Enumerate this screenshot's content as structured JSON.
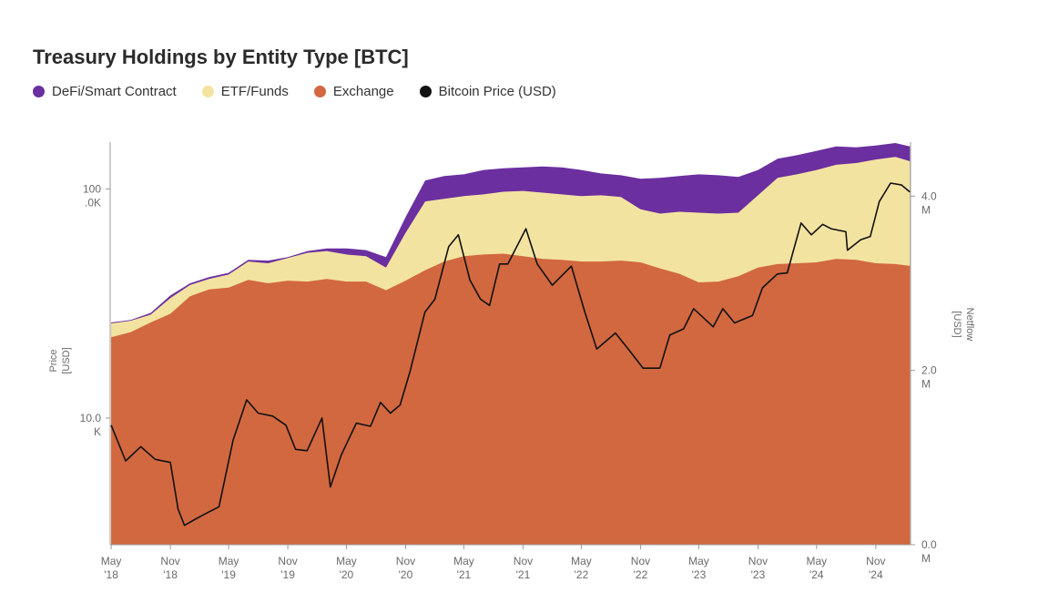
{
  "colors": {
    "defi": "#6b2fa0",
    "etf": "#f3e3a0",
    "exchange": "#d2683f",
    "price": "#111111"
  },
  "chart_data": {
    "type": "area",
    "title": "Treasury Holdings by Entity Type [BTC]",
    "legend": [
      {
        "key": "defi",
        "label": "DeFi/Smart Contract"
      },
      {
        "key": "etf",
        "label": "ETF/Funds"
      },
      {
        "key": "exchange",
        "label": "Exchange"
      },
      {
        "key": "price",
        "label": "Bitcoin Price (USD)"
      }
    ],
    "legend_position": "top-left",
    "grid": false,
    "x_ticks": [
      {
        "month": "May",
        "year": "'18"
      },
      {
        "month": "Nov",
        "year": "'18"
      },
      {
        "month": "May",
        "year": "'19"
      },
      {
        "month": "Nov",
        "year": "'19"
      },
      {
        "month": "May",
        "year": "'20"
      },
      {
        "month": "Nov",
        "year": "'20"
      },
      {
        "month": "May",
        "year": "'21"
      },
      {
        "month": "Nov",
        "year": "'21"
      },
      {
        "month": "May",
        "year": "'22"
      },
      {
        "month": "Nov",
        "year": "'22"
      },
      {
        "month": "May",
        "year": "'23"
      },
      {
        "month": "Nov",
        "year": "'23"
      },
      {
        "month": "May",
        "year": "'24"
      },
      {
        "month": "Nov",
        "year": "'24"
      }
    ],
    "y_left": {
      "label_line1": "Price",
      "label_line2": "[USD]",
      "scale": "log",
      "range": [
        2800,
        160000
      ],
      "ticks": [
        {
          "value": 100000,
          "line1": "100",
          "line2": ".0K"
        },
        {
          "value": 10000,
          "line1": "10.0",
          "line2": "K"
        }
      ]
    },
    "y_right": {
      "label_line1": "Netflow",
      "label_line2": "[USD]",
      "scale": "linear",
      "range": [
        0,
        4620000
      ],
      "ticks": [
        {
          "value": 4000000,
          "line1": "4.0",
          "line2": "M"
        },
        {
          "value": 2000000,
          "line1": "2.0",
          "line2": "M"
        },
        {
          "value": 0,
          "line1": "0.0",
          "line2": "M"
        }
      ]
    },
    "holdings_series": {
      "dates": [
        "2018-05-01",
        "2018-07-01",
        "2018-09-01",
        "2018-11-01",
        "2019-01-01",
        "2019-03-01",
        "2019-05-01",
        "2019-07-01",
        "2019-09-01",
        "2019-11-01",
        "2020-01-01",
        "2020-03-01",
        "2020-05-01",
        "2020-07-01",
        "2020-09-01",
        "2020-11-01",
        "2021-01-01",
        "2021-03-01",
        "2021-05-01",
        "2021-07-01",
        "2021-09-01",
        "2021-11-01",
        "2022-01-01",
        "2022-03-01",
        "2022-05-01",
        "2022-07-01",
        "2022-09-01",
        "2022-11-01",
        "2023-01-01",
        "2023-03-01",
        "2023-05-01",
        "2023-07-01",
        "2023-09-01",
        "2023-11-01",
        "2024-01-01",
        "2024-03-01",
        "2024-05-01",
        "2024-07-01",
        "2024-09-01",
        "2024-11-01",
        "2025-01-01",
        "2025-02-15"
      ],
      "exchange": [
        2380000,
        2440000,
        2550000,
        2650000,
        2850000,
        2930000,
        2950000,
        3040000,
        3000000,
        3030000,
        3020000,
        3050000,
        3020000,
        3020000,
        2920000,
        3030000,
        3150000,
        3250000,
        3310000,
        3330000,
        3340000,
        3310000,
        3280000,
        3270000,
        3250000,
        3250000,
        3260000,
        3240000,
        3170000,
        3110000,
        3010000,
        3020000,
        3080000,
        3180000,
        3220000,
        3230000,
        3240000,
        3280000,
        3270000,
        3230000,
        3220000,
        3200000
      ],
      "etf": [
        2540000,
        2570000,
        2640000,
        2830000,
        2980000,
        3050000,
        3100000,
        3250000,
        3230000,
        3290000,
        3350000,
        3370000,
        3330000,
        3310000,
        3180000,
        3580000,
        3940000,
        3970000,
        4000000,
        4020000,
        4050000,
        4060000,
        4040000,
        4020000,
        4000000,
        4010000,
        3990000,
        3850000,
        3800000,
        3820000,
        3810000,
        3800000,
        3810000,
        4010000,
        4210000,
        4250000,
        4300000,
        4360000,
        4380000,
        4420000,
        4450000,
        4400000
      ],
      "defi": [
        2550000,
        2580000,
        2660000,
        2860000,
        3000000,
        3070000,
        3120000,
        3270000,
        3260000,
        3300000,
        3370000,
        3400000,
        3400000,
        3380000,
        3300000,
        3760000,
        4180000,
        4230000,
        4250000,
        4300000,
        4320000,
        4330000,
        4340000,
        4330000,
        4300000,
        4260000,
        4240000,
        4200000,
        4210000,
        4230000,
        4250000,
        4240000,
        4220000,
        4300000,
        4430000,
        4470000,
        4520000,
        4570000,
        4560000,
        4580000,
        4610000,
        4570000
      ]
    },
    "price_series": {
      "dates": [
        "2018-05-01",
        "2018-06-15",
        "2018-08-01",
        "2018-09-15",
        "2018-11-01",
        "2018-11-25",
        "2018-12-15",
        "2019-01-15",
        "2019-02-15",
        "2019-04-01",
        "2019-05-15",
        "2019-06-26",
        "2019-08-01",
        "2019-09-15",
        "2019-10-26",
        "2019-11-25",
        "2019-12-31",
        "2020-02-15",
        "2020-03-12",
        "2020-04-15",
        "2020-06-01",
        "2020-07-15",
        "2020-08-15",
        "2020-09-15",
        "2020-10-15",
        "2020-11-15",
        "2020-12-31",
        "2021-01-31",
        "2021-03-15",
        "2021-04-14",
        "2021-05-20",
        "2021-06-22",
        "2021-07-20",
        "2021-08-20",
        "2021-09-15",
        "2021-11-10",
        "2021-12-15",
        "2022-01-31",
        "2022-03-31",
        "2022-05-12",
        "2022-06-18",
        "2022-08-15",
        "2022-09-30",
        "2022-11-09",
        "2022-12-31",
        "2023-01-31",
        "2023-03-15",
        "2023-04-15",
        "2023-06-15",
        "2023-07-15",
        "2023-08-20",
        "2023-10-15",
        "2023-11-15",
        "2023-12-31",
        "2024-01-31",
        "2024-03-14",
        "2024-04-15",
        "2024-05-20",
        "2024-06-15",
        "2024-07-31",
        "2024-08-05",
        "2024-09-15",
        "2024-10-15",
        "2024-11-12",
        "2024-12-17",
        "2025-01-20",
        "2025-02-15"
      ],
      "values": [
        9300,
        6500,
        7500,
        6600,
        6400,
        4000,
        3400,
        3600,
        3800,
        4100,
        8000,
        12000,
        10500,
        10200,
        9300,
        7300,
        7200,
        10000,
        5000,
        6900,
        9500,
        9200,
        11700,
        10500,
        11400,
        16000,
        29000,
        33000,
        56000,
        63000,
        40000,
        33000,
        31000,
        47000,
        47000,
        67000,
        47000,
        38000,
        46000,
        29000,
        20000,
        23500,
        19500,
        16500,
        16500,
        23000,
        24500,
        30000,
        25000,
        30000,
        26000,
        28000,
        37000,
        42500,
        43000,
        71000,
        63000,
        70000,
        67000,
        65000,
        54000,
        60000,
        62000,
        88000,
        106000,
        104000,
        97000
      ]
    }
  }
}
